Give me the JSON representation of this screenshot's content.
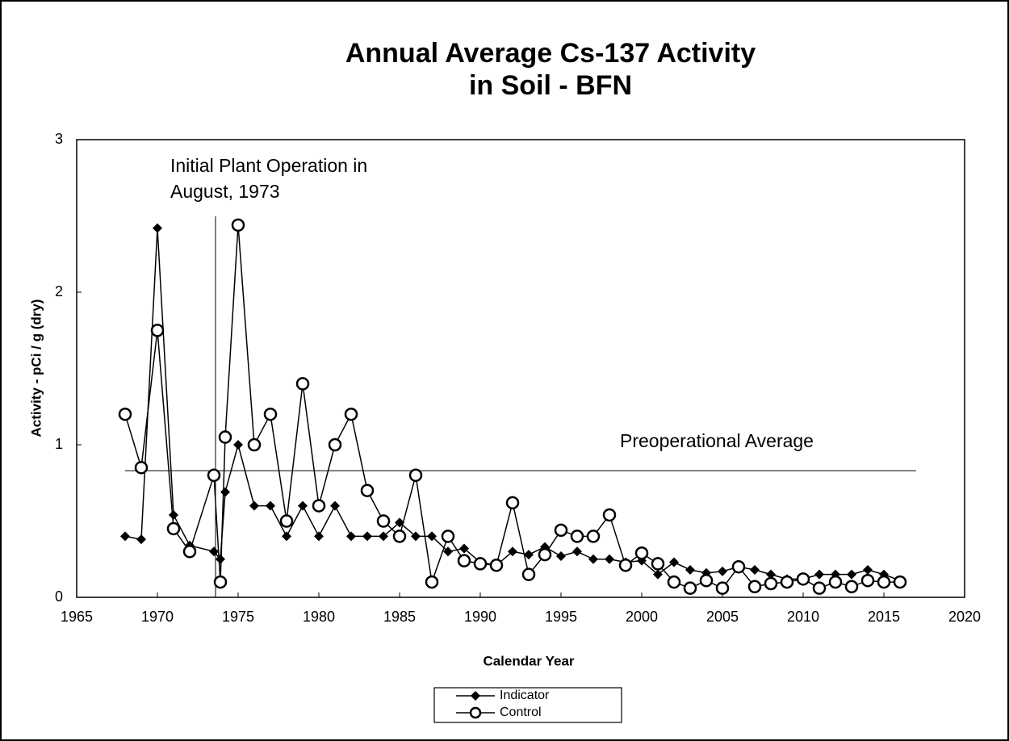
{
  "chart_data": {
    "type": "line",
    "title": [
      "Annual Average Cs-137 Activity",
      "in Soil - BFN"
    ],
    "x_label": "Calendar Year",
    "y_label": "Activity  -  pCi / g (dry)",
    "x": [
      1968,
      1969,
      1970,
      1971,
      1972,
      1973.5,
      1973.9,
      1974.2,
      1975,
      1976,
      1977,
      1978,
      1979,
      1980,
      1981,
      1982,
      1983,
      1984,
      1985,
      1986,
      1987,
      1988,
      1989,
      1990,
      1991,
      1992,
      1993,
      1994,
      1995,
      1996,
      1997,
      1998,
      1999,
      2000,
      2001,
      2002,
      2003,
      2004,
      2005,
      2006,
      2007,
      2008,
      2009,
      2010,
      2011,
      2012,
      2013,
      2014,
      2015,
      2016
    ],
    "series": [
      {
        "name": "Indicator",
        "color": "#000000",
        "marker": "diamond",
        "values": [
          0.4,
          0.38,
          2.42,
          0.54,
          0.34,
          0.3,
          0.25,
          0.69,
          1.0,
          0.6,
          0.6,
          0.4,
          0.6,
          0.4,
          0.6,
          0.4,
          0.4,
          0.4,
          0.49,
          0.4,
          0.4,
          0.3,
          0.32,
          0.23,
          0.21,
          0.3,
          0.28,
          0.33,
          0.27,
          0.3,
          0.25,
          0.25,
          0.23,
          0.24,
          0.15,
          0.23,
          0.18,
          0.16,
          0.17,
          0.2,
          0.18,
          0.15,
          0.12,
          0.12,
          0.15,
          0.15,
          0.15,
          0.18,
          0.15,
          0.11
        ]
      },
      {
        "name": "Control",
        "color": "#000000",
        "marker": "circle",
        "values": [
          1.2,
          0.85,
          1.75,
          0.45,
          0.3,
          0.8,
          0.1,
          1.05,
          2.44,
          1.0,
          1.2,
          0.5,
          1.4,
          0.6,
          1.0,
          1.2,
          0.7,
          0.5,
          0.4,
          0.8,
          0.1,
          0.4,
          0.24,
          0.22,
          0.21,
          0.62,
          0.15,
          0.28,
          0.44,
          0.4,
          0.4,
          0.54,
          0.21,
          0.29,
          0.22,
          0.1,
          0.06,
          0.11,
          0.06,
          0.2,
          0.07,
          0.09,
          0.1,
          0.12,
          0.06,
          0.1,
          0.07,
          0.11,
          0.1,
          0.1
        ]
      }
    ],
    "xlim": [
      1965,
      2020
    ],
    "xticks": [
      1965,
      1970,
      1975,
      1980,
      1985,
      1990,
      1995,
      2000,
      2005,
      2010,
      2015,
      2020
    ],
    "ylim": [
      0,
      3
    ],
    "yticks": [
      0,
      1,
      2,
      3
    ],
    "grid": false,
    "legend": "bottom",
    "vline": {
      "x": 1973.6,
      "text": [
        "Initial Plant Operation in",
        "August, 1973"
      ]
    },
    "hline": {
      "y": 0.83,
      "x": [
        1968,
        2017
      ],
      "text": "Preoperational Average"
    }
  }
}
